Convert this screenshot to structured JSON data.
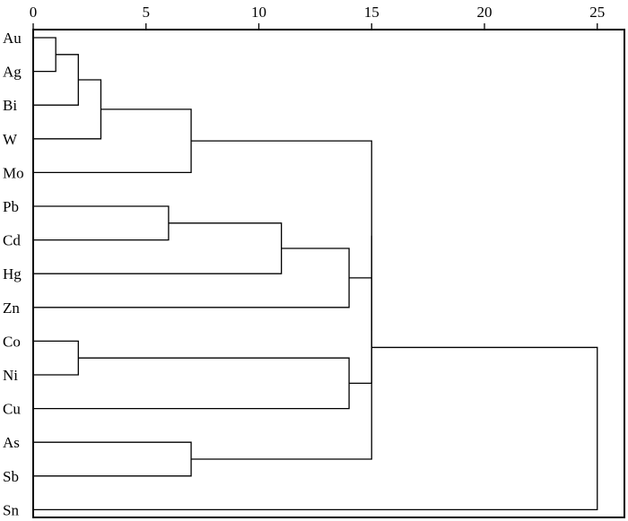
{
  "chart_data": {
    "type": "dendrogram",
    "x_axis": {
      "ticks": [
        0,
        5,
        10,
        15,
        20,
        25
      ],
      "tick_labels": [
        "0",
        "5",
        "10",
        "15",
        "20",
        "25"
      ],
      "range": [
        0,
        26.5
      ],
      "position": "top"
    },
    "leaves": [
      "Au",
      "Ag",
      "Bi",
      "W",
      "Mo",
      "Pb",
      "Cd",
      "Hg",
      "Zn",
      "Co",
      "Ni",
      "Cu",
      "As",
      "Sb",
      "Sn"
    ],
    "merges": [
      {
        "a": "Au",
        "b": "Ag",
        "distance": 1
      },
      {
        "a": "Au+Ag",
        "b": "Bi",
        "distance": 2
      },
      {
        "a": "Au+Ag+Bi",
        "b": "W",
        "distance": 3
      },
      {
        "a": "Au+Ag+Bi+W",
        "b": "Mo",
        "distance": 7
      },
      {
        "a": "Pb",
        "b": "Cd",
        "distance": 6
      },
      {
        "a": "Pb+Cd",
        "b": "Hg",
        "distance": 11
      },
      {
        "a": "Pb+Cd+Hg",
        "b": "Zn",
        "distance": 14
      },
      {
        "a": "Co",
        "b": "Ni",
        "distance": 2
      },
      {
        "a": "Co+Ni",
        "b": "Cu",
        "distance": 14
      },
      {
        "a": "As",
        "b": "Sb",
        "distance": 7
      },
      {
        "a": "Pb+Cd+Hg+Zn",
        "b": "Co+Ni+Cu",
        "distance": 15
      },
      {
        "a": "Au+Ag+Bi+W+Mo",
        "b": "Pb+Cd+Hg+Zn+Co+Ni+Cu",
        "distance": 15
      },
      {
        "a": "Au..Cu",
        "b": "As+Sb",
        "distance": 15
      },
      {
        "a": "Au..Sb",
        "b": "Sn",
        "distance": 25
      }
    ],
    "grid": false,
    "legend": "none"
  }
}
